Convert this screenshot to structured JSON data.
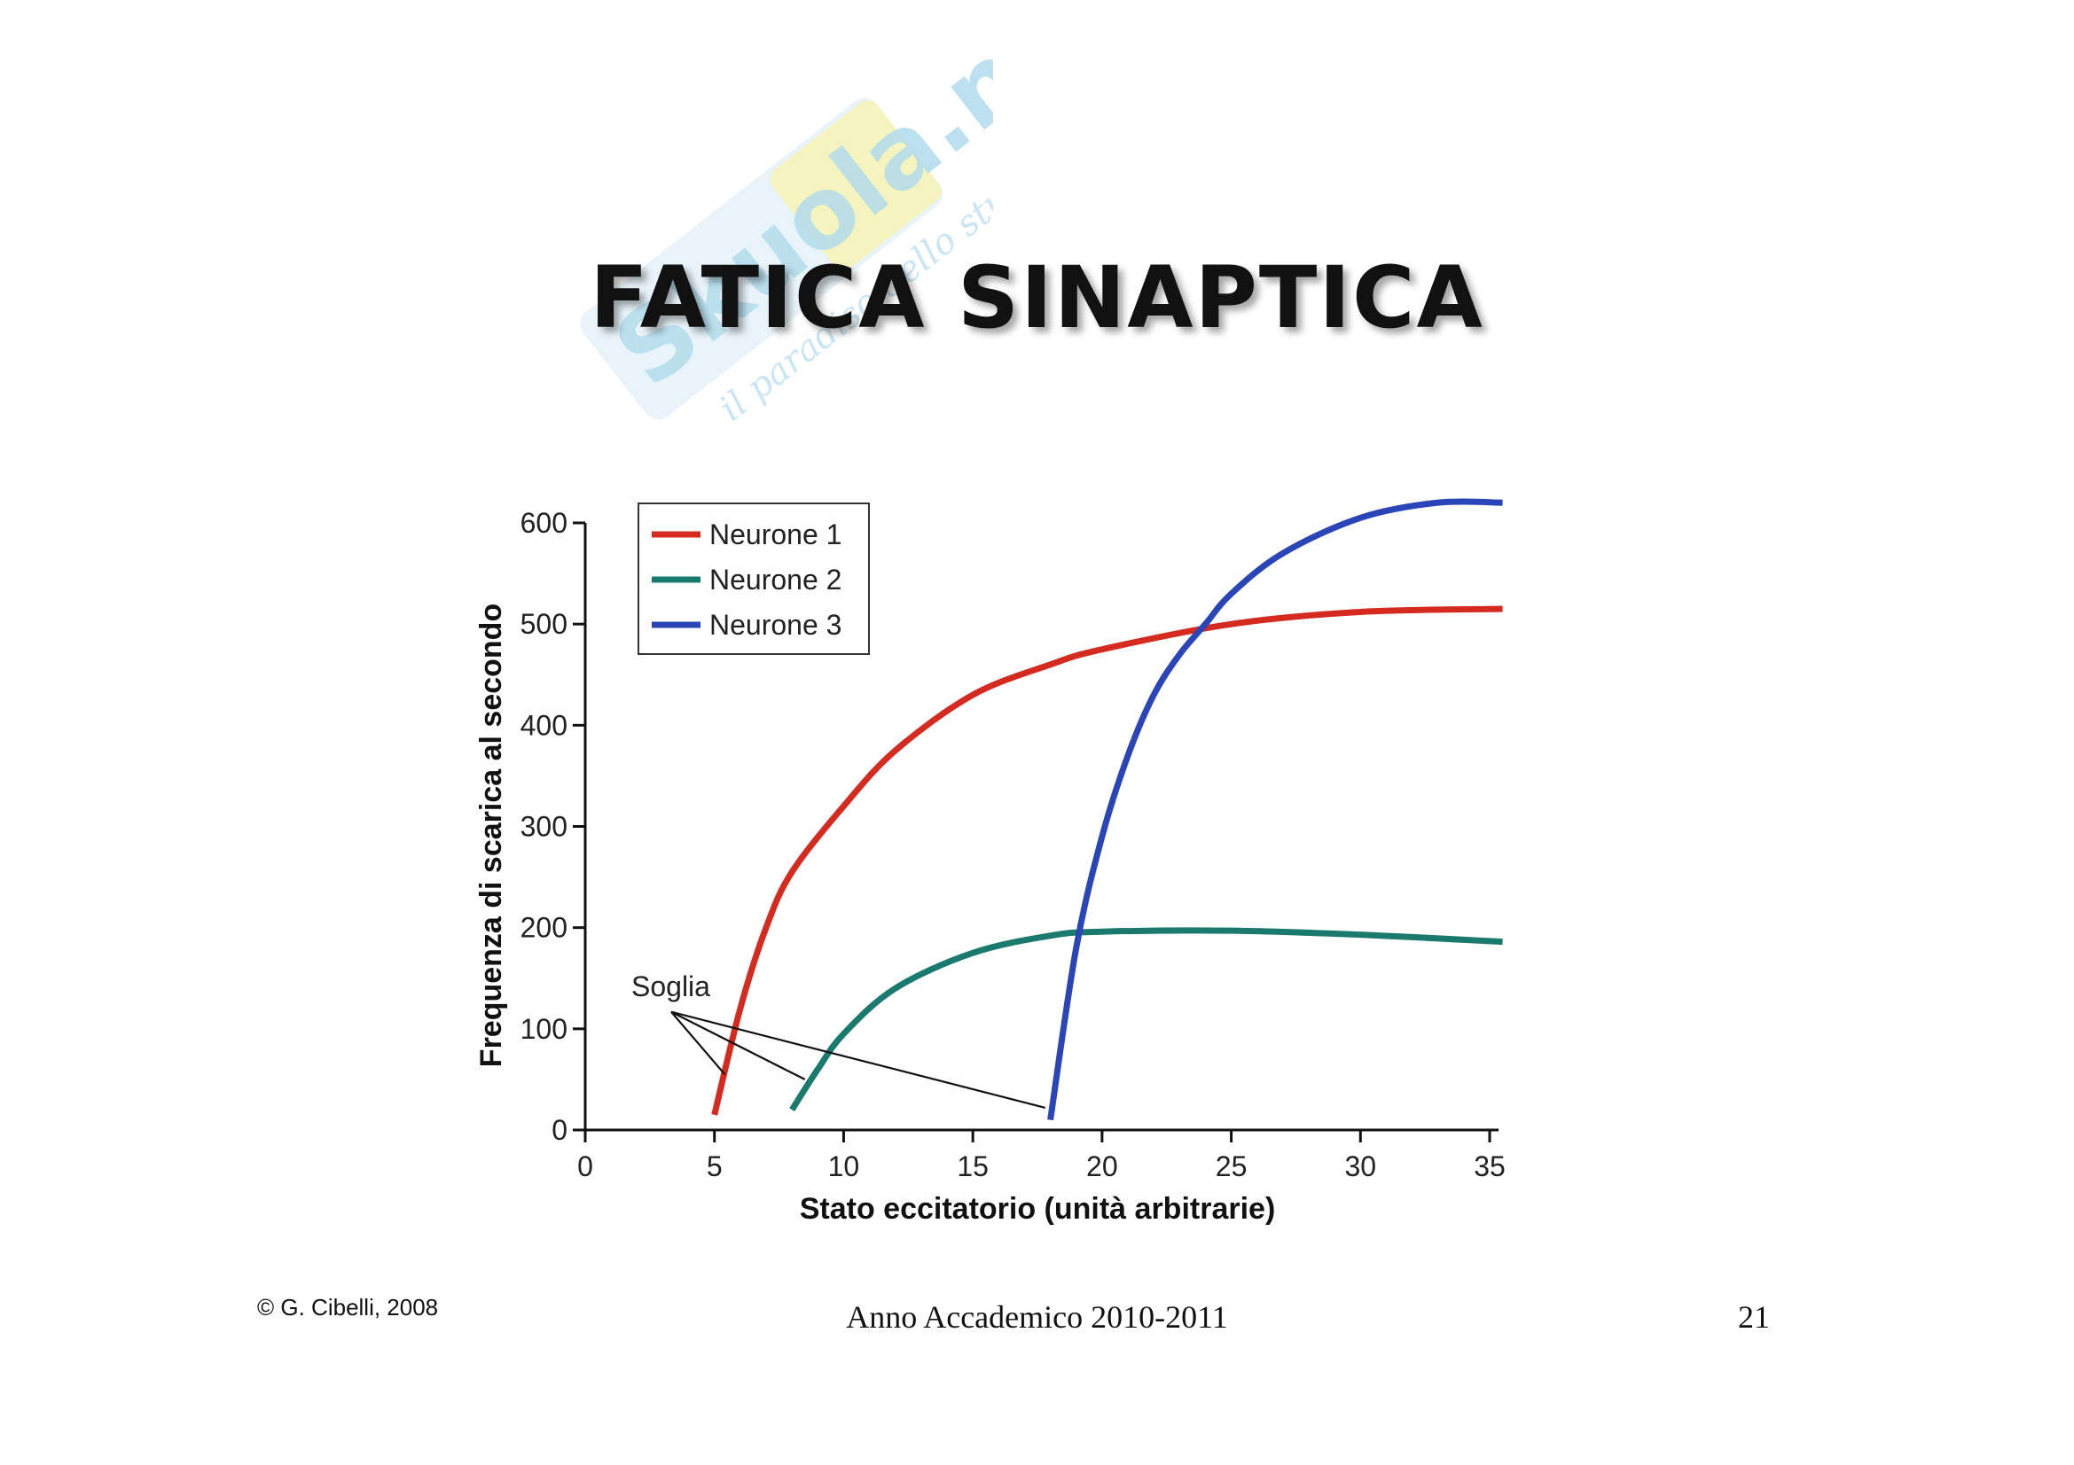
{
  "slide": {
    "title": "FATICA SINAPTICA",
    "copyright": "© G. Cibelli, 2008",
    "academic_year": "Anno Accademico 2010-2011",
    "page_number": "21"
  },
  "watermark": {
    "brand": "Skuola.net",
    "tagline": "il paradiso dello studente",
    "colors": {
      "brand": "#7ec8e3",
      "accent": "#f2e85a"
    }
  },
  "chart_data": {
    "type": "line",
    "title": "",
    "xlabel": "Stato eccitatorio (unità arbitrarie)",
    "ylabel": "Frequenza di scarica al secondo",
    "xlim": [
      0,
      35
    ],
    "ylim": [
      0,
      600
    ],
    "x_ticks": [
      0,
      5,
      10,
      15,
      20,
      25,
      30,
      35
    ],
    "y_ticks": [
      0,
      100,
      200,
      300,
      400,
      500,
      600
    ],
    "grid": false,
    "legend_position": "top-left",
    "series": [
      {
        "name": "Neurone 1",
        "color": "#d42a20",
        "points": [
          [
            5,
            15
          ],
          [
            6,
            120
          ],
          [
            7,
            200
          ],
          [
            8,
            255
          ],
          [
            10,
            320
          ],
          [
            12,
            375
          ],
          [
            15,
            430
          ],
          [
            18,
            460
          ],
          [
            20,
            475
          ],
          [
            25,
            500
          ],
          [
            30,
            512
          ],
          [
            35.5,
            515
          ]
        ]
      },
      {
        "name": "Neurone 2",
        "color": "#1a7a6e",
        "points": [
          [
            8,
            20
          ],
          [
            9,
            60
          ],
          [
            10,
            95
          ],
          [
            12,
            140
          ],
          [
            15,
            175
          ],
          [
            18,
            192
          ],
          [
            20,
            196
          ],
          [
            25,
            197
          ],
          [
            30,
            193
          ],
          [
            35.5,
            186
          ]
        ]
      },
      {
        "name": "Neurone 3",
        "color": "#2a45b8",
        "points": [
          [
            18,
            10
          ],
          [
            19,
            180
          ],
          [
            20,
            290
          ],
          [
            21,
            370
          ],
          [
            22,
            430
          ],
          [
            23,
            470
          ],
          [
            24,
            500
          ],
          [
            25,
            530
          ],
          [
            27,
            570
          ],
          [
            30,
            605
          ],
          [
            33,
            620
          ],
          [
            35.5,
            620
          ]
        ]
      }
    ],
    "annotations": [
      {
        "text": "Soglia",
        "x": 3.5,
        "y": 150,
        "arrows_to": [
          [
            5.4,
            55
          ],
          [
            8.5,
            50
          ],
          [
            17.8,
            22
          ]
        ]
      }
    ]
  }
}
